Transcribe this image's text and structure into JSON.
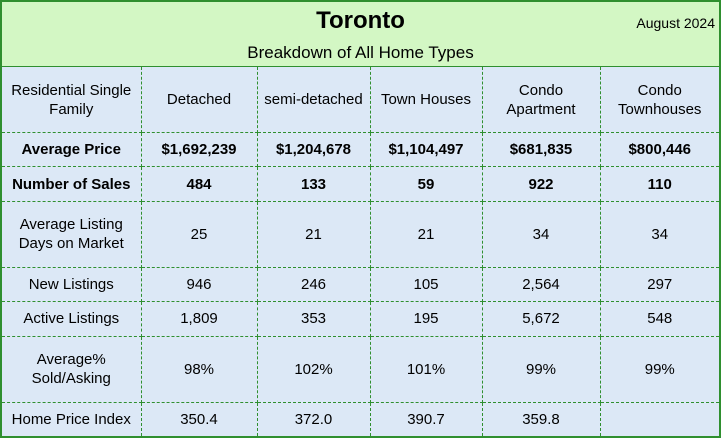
{
  "header": {
    "title": "Toronto",
    "subtitle": "Breakdown of All Home Types",
    "date": "August 2024"
  },
  "table": {
    "columns": [
      "Residential Single Family",
      "Detached",
      "semi-detached",
      "Town Houses",
      "Condo Apartment",
      "Condo Townhouses"
    ],
    "rows": [
      {
        "label": "Average Price",
        "values": [
          "$1,692,239",
          "$1,204,678",
          "$1,104,497",
          "$681,835",
          "$800,446"
        ]
      },
      {
        "label": "Number of Sales",
        "values": [
          "484",
          "133",
          "59",
          "922",
          "110"
        ]
      },
      {
        "label": "Average Listing Days on Market",
        "values": [
          "25",
          "21",
          "21",
          "34",
          "34"
        ]
      },
      {
        "label": "New Listings",
        "values": [
          "946",
          "246",
          "105",
          "2,564",
          "297"
        ]
      },
      {
        "label": "Active Listings",
        "values": [
          "1,809",
          "353",
          "195",
          "5,672",
          "548"
        ]
      },
      {
        "label": "Average% Sold/Asking",
        "values": [
          "98%",
          "102%",
          "101%",
          "99%",
          "99%"
        ]
      },
      {
        "label": "Home Price Index",
        "values": [
          "350.4",
          "372.0",
          "390.7",
          "359.8",
          ""
        ]
      }
    ]
  }
}
